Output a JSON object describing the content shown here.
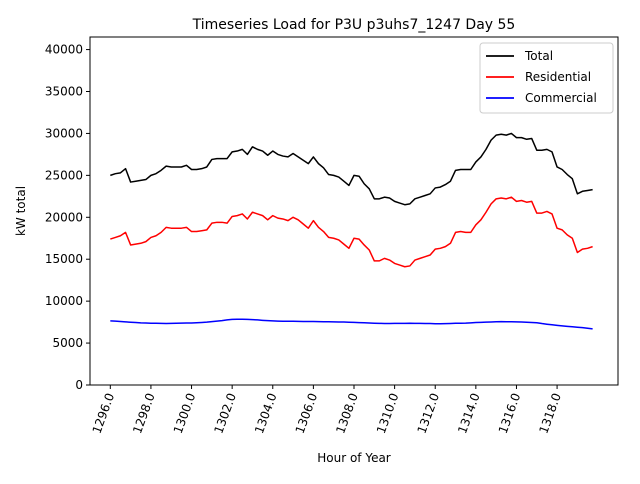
{
  "chart_data": {
    "type": "line",
    "title": "Timeseries Load for P3U p3uhs7_1247  Day 55",
    "xlabel": "Hour of Year",
    "ylabel": "kW total",
    "xlim": [
      1295,
      1321
    ],
    "ylim": [
      0,
      41500
    ],
    "x_ticks": [
      1296,
      1298,
      1300,
      1302,
      1304,
      1306,
      1308,
      1310,
      1312,
      1314,
      1316,
      1318
    ],
    "x_tick_labels": [
      "1296.0",
      "1298.0",
      "1300.0",
      "1302.0",
      "1304.0",
      "1306.0",
      "1308.0",
      "1310.0",
      "1312.0",
      "1314.0",
      "1316.0",
      "1318.0"
    ],
    "y_ticks": [
      0,
      5000,
      10000,
      15000,
      20000,
      25000,
      30000,
      35000,
      40000
    ],
    "y_tick_labels": [
      "0",
      "5000",
      "10000",
      "15000",
      "20000",
      "25000",
      "30000",
      "35000",
      "40000"
    ],
    "grid": false,
    "legend_position": "top-right",
    "x": [
      1296.0,
      1296.25,
      1296.5,
      1296.75,
      1297.0,
      1297.25,
      1297.5,
      1297.75,
      1298.0,
      1298.25,
      1298.5,
      1298.75,
      1299.0,
      1299.25,
      1299.5,
      1299.75,
      1300.0,
      1300.25,
      1300.5,
      1300.75,
      1301.0,
      1301.25,
      1301.5,
      1301.75,
      1302.0,
      1302.25,
      1302.5,
      1302.75,
      1303.0,
      1303.25,
      1303.5,
      1303.75,
      1304.0,
      1304.25,
      1304.5,
      1304.75,
      1305.0,
      1305.25,
      1305.5,
      1305.75,
      1306.0,
      1306.25,
      1306.5,
      1306.75,
      1307.0,
      1307.25,
      1307.5,
      1307.75,
      1308.0,
      1308.25,
      1308.5,
      1308.75,
      1309.0,
      1309.25,
      1309.5,
      1309.75,
      1310.0,
      1310.25,
      1310.5,
      1310.75,
      1311.0,
      1311.25,
      1311.5,
      1311.75,
      1312.0,
      1312.25,
      1312.5,
      1312.75,
      1313.0,
      1313.25,
      1313.5,
      1313.75,
      1314.0,
      1314.25,
      1314.5,
      1314.75,
      1315.0,
      1315.25,
      1315.5,
      1315.75,
      1316.0,
      1316.25,
      1316.5,
      1316.75,
      1317.0,
      1317.25,
      1317.5,
      1317.75,
      1318.0,
      1318.25,
      1318.5,
      1318.75,
      1319.0,
      1319.25,
      1319.5,
      1319.75
    ],
    "series": [
      {
        "name": "Total",
        "color": "#000000",
        "values": [
          25000,
          25200,
          25300,
          25800,
          24200,
          24300,
          24400,
          24500,
          25000,
          25200,
          25600,
          26100,
          26000,
          26000,
          26000,
          26200,
          25700,
          25700,
          25800,
          26000,
          26900,
          27000,
          27000,
          27000,
          27800,
          27900,
          28100,
          27500,
          28400,
          28100,
          27900,
          27400,
          27900,
          27500,
          27300,
          27200,
          27600,
          27200,
          26800,
          26400,
          27200,
          26400,
          25900,
          25100,
          25000,
          24800,
          24300,
          23800,
          25000,
          24900,
          24000,
          23400,
          22200,
          22200,
          22400,
          22300,
          21900,
          21700,
          21500,
          21600,
          22200,
          22400,
          22600,
          22800,
          23500,
          23600,
          23900,
          24300,
          25600,
          25700,
          25700,
          25700,
          26600,
          27200,
          28100,
          29200,
          29800,
          29900,
          29800,
          30000,
          29500,
          29500,
          29300,
          29400,
          28000,
          28000,
          28100,
          27800,
          26000,
          25700,
          25100,
          24600,
          22800,
          23100,
          23200,
          23300
        ]
      },
      {
        "name": "Residential",
        "color": "#ff0000",
        "values": [
          17400,
          17600,
          17800,
          18200,
          16700,
          16800,
          16900,
          17100,
          17600,
          17800,
          18200,
          18800,
          18700,
          18700,
          18700,
          18800,
          18300,
          18300,
          18400,
          18500,
          19300,
          19400,
          19400,
          19300,
          20100,
          20200,
          20400,
          19800,
          20600,
          20400,
          20200,
          19700,
          20200,
          19900,
          19800,
          19600,
          20000,
          19700,
          19200,
          18700,
          19600,
          18800,
          18300,
          17600,
          17500,
          17300,
          16800,
          16300,
          17500,
          17400,
          16700,
          16100,
          14800,
          14800,
          15100,
          14900,
          14500,
          14300,
          14100,
          14200,
          14900,
          15100,
          15300,
          15500,
          16200,
          16300,
          16500,
          16900,
          18200,
          18300,
          18200,
          18200,
          19100,
          19700,
          20600,
          21600,
          22200,
          22300,
          22200,
          22400,
          21900,
          22000,
          21800,
          21900,
          20500,
          20500,
          20700,
          20400,
          18700,
          18500,
          17900,
          17500,
          15800,
          16200,
          16300,
          16500
        ]
      },
      {
        "name": "Commercial",
        "color": "#0000ff",
        "values": [
          7650,
          7620,
          7580,
          7530,
          7490,
          7450,
          7410,
          7390,
          7370,
          7360,
          7350,
          7340,
          7350,
          7360,
          7380,
          7390,
          7400,
          7430,
          7460,
          7500,
          7560,
          7620,
          7680,
          7760,
          7820,
          7840,
          7840,
          7820,
          7790,
          7760,
          7710,
          7670,
          7640,
          7620,
          7610,
          7600,
          7600,
          7590,
          7580,
          7570,
          7570,
          7560,
          7550,
          7540,
          7530,
          7520,
          7510,
          7490,
          7470,
          7440,
          7420,
          7390,
          7370,
          7350,
          7340,
          7340,
          7350,
          7350,
          7350,
          7360,
          7350,
          7350,
          7340,
          7330,
          7310,
          7310,
          7320,
          7340,
          7360,
          7370,
          7380,
          7410,
          7450,
          7470,
          7500,
          7520,
          7550,
          7560,
          7550,
          7540,
          7530,
          7510,
          7490,
          7460,
          7430,
          7330,
          7250,
          7180,
          7110,
          7050,
          6990,
          6940,
          6890,
          6840,
          6770,
          6700
        ]
      }
    ]
  }
}
